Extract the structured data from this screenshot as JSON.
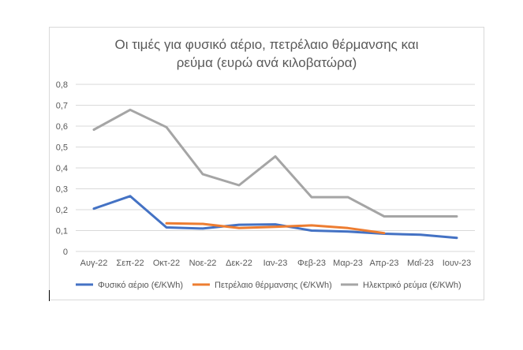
{
  "chart_data": {
    "type": "line",
    "title_line1": "Οι τιμές για φυσικό αέριο, πετρέλαιο θέρμανσης και",
    "title_line2": "ρεύμα (ευρώ ανά κιλοβατώρα)",
    "categories": [
      "Αυγ-22",
      "Σεπ-22",
      "Οκτ-22",
      "Νοε-22",
      "Δεκ-22",
      "Ιαν-23",
      "Φεβ-23",
      "Μαρ-23",
      "Απρ-23",
      "Μαΐ-23",
      "Ιουν-23"
    ],
    "ylim": [
      0,
      0.8
    ],
    "yticks": [
      "0",
      "0,1",
      "0,2",
      "0,3",
      "0,4",
      "0,5",
      "0,6",
      "0,7",
      "0,8"
    ],
    "grid": true,
    "legend_position": "bottom",
    "series": [
      {
        "name": "Φυσικό αέριο (€/KWh)",
        "color": "#4472c4",
        "values": [
          0.205,
          0.265,
          0.115,
          0.11,
          0.128,
          0.13,
          0.1,
          0.095,
          0.085,
          0.08,
          0.065
        ]
      },
      {
        "name": "Πετρέλαιο θέρμανσης (€/KWh)",
        "color": "#ed7d31",
        "values": [
          null,
          null,
          0.135,
          0.132,
          0.112,
          0.118,
          0.125,
          0.112,
          0.088,
          null,
          null
        ]
      },
      {
        "name": "Ηλεκτρικό ρεύμα (€/KWh)",
        "color": "#a5a5a5",
        "values": [
          0.583,
          0.678,
          0.595,
          0.37,
          0.317,
          0.455,
          0.26,
          0.26,
          0.168,
          0.168,
          0.168
        ]
      }
    ]
  }
}
